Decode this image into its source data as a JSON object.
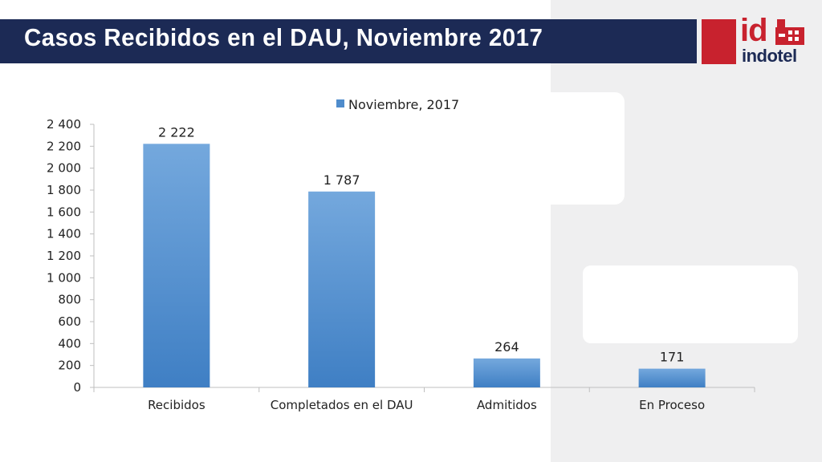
{
  "slide": {
    "title": "Casos Recibidos en el DAU, Noviembre 2017"
  },
  "logo": {
    "mark": "id",
    "name": "indotel"
  },
  "colors": {
    "title_bar": "#1c2a55",
    "brand_red": "#c8222e",
    "bar_top": "#74a8dd",
    "bar_bottom": "#3f7fc4",
    "background_shape": "#efeff0"
  },
  "chart_data": {
    "type": "bar",
    "categories": [
      "Recibidos",
      "Completados en el DAU",
      "Admitidos",
      "En Proceso"
    ],
    "series": [
      {
        "name": "Noviembre, 2017",
        "values": [
          2222,
          1787,
          264,
          171
        ]
      }
    ],
    "data_labels": [
      "2 222",
      "1 787",
      "264",
      "171"
    ],
    "yticks": [
      0,
      200,
      400,
      600,
      800,
      1000,
      1200,
      1400,
      1600,
      1800,
      2000,
      2200,
      2400
    ],
    "ytick_labels": [
      "0",
      "200",
      "400",
      "600",
      "800",
      "1 000",
      "1 200",
      "1 400",
      "1 600",
      "1 800",
      "2 000",
      "2 200",
      "2 400"
    ],
    "ylim": [
      0,
      2400
    ],
    "grid": false,
    "legend_position": "top"
  }
}
